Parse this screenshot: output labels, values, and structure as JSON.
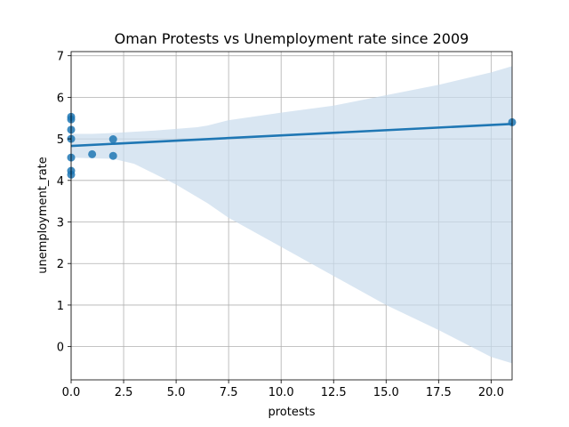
{
  "chart_data": {
    "type": "scatter",
    "title": "Oman Protests vs Unemployment rate since 2009",
    "xlabel": "protests",
    "ylabel": "unemployment_rate",
    "xlim": [
      0,
      21
    ],
    "ylim": [
      -0.8,
      7.1
    ],
    "x_ticks": [
      0,
      2.5,
      5,
      7.5,
      10,
      12.5,
      15,
      17.5,
      20
    ],
    "x_tick_labels": [
      "0.0",
      "2.5",
      "5.0",
      "7.5",
      "10.0",
      "12.5",
      "15.0",
      "17.5",
      "20.0"
    ],
    "y_ticks": [
      0,
      1,
      2,
      3,
      4,
      5,
      6,
      7
    ],
    "y_tick_labels": [
      "0",
      "1",
      "2",
      "3",
      "4",
      "5",
      "6",
      "7"
    ],
    "grid": true,
    "colors": {
      "points": "#1f77b4",
      "regression_line": "#1f77b4",
      "confidence_band": "#c9dcec"
    },
    "series": [
      {
        "type": "scatter",
        "points": [
          {
            "x": 0,
            "y": 5.53
          },
          {
            "x": 0,
            "y": 5.47
          },
          {
            "x": 0,
            "y": 5.22
          },
          {
            "x": 0,
            "y": 5.0
          },
          {
            "x": 0,
            "y": 4.55
          },
          {
            "x": 0,
            "y": 4.23
          },
          {
            "x": 0,
            "y": 4.14
          },
          {
            "x": 1,
            "y": 4.63
          },
          {
            "x": 2,
            "y": 4.99
          },
          {
            "x": 2,
            "y": 4.59
          },
          {
            "x": 21,
            "y": 5.4
          }
        ]
      },
      {
        "type": "line",
        "x": [
          0,
          21
        ],
        "y": [
          4.83,
          5.36
        ]
      },
      {
        "type": "area",
        "x": [
          0,
          1,
          2,
          3,
          4,
          5,
          6,
          6.5,
          7.5,
          10,
          12.5,
          15,
          17.5,
          20,
          21
        ],
        "upper": [
          5.12,
          5.12,
          5.14,
          5.17,
          5.2,
          5.24,
          5.28,
          5.32,
          5.45,
          5.63,
          5.8,
          6.05,
          6.3,
          6.6,
          6.75
        ],
        "lower": [
          4.55,
          4.53,
          4.52,
          4.4,
          4.15,
          3.9,
          3.6,
          3.45,
          3.1,
          2.4,
          1.7,
          1.0,
          0.4,
          -0.25,
          -0.4
        ]
      }
    ]
  }
}
